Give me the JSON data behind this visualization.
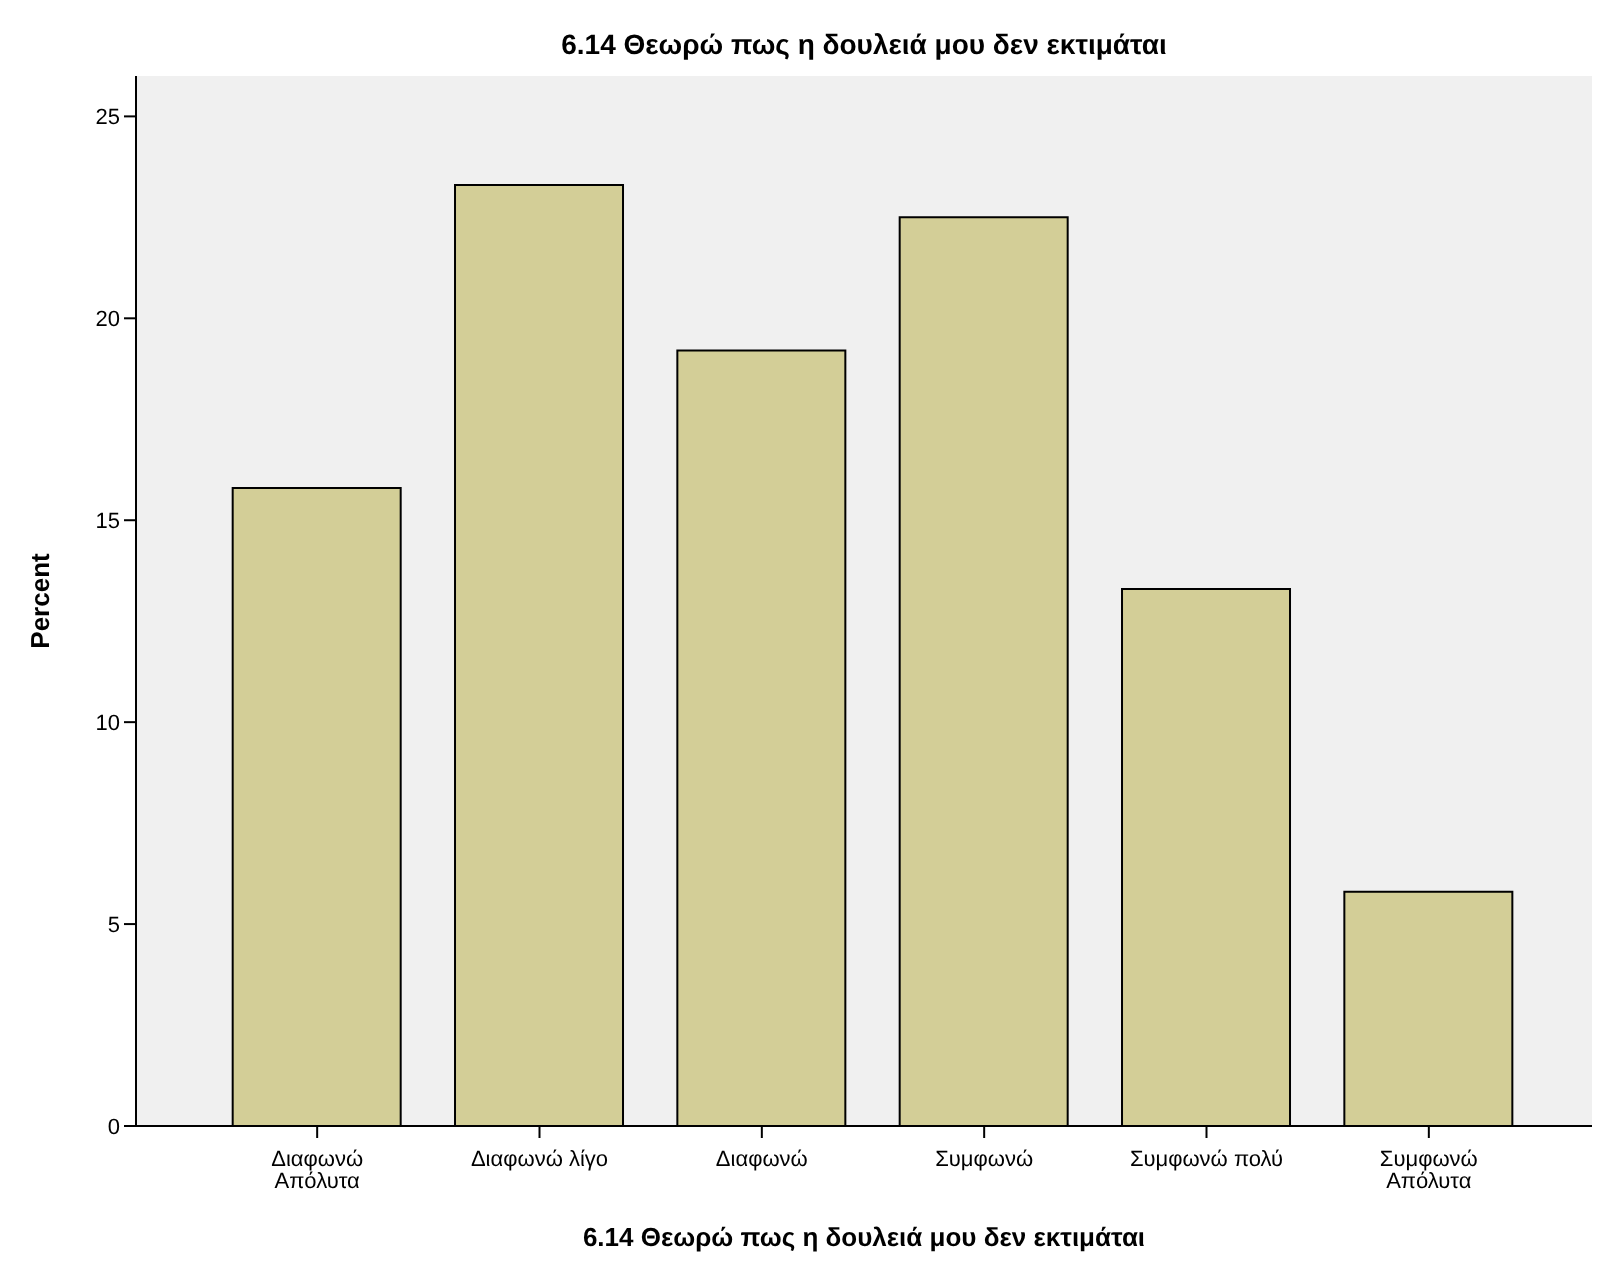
{
  "chart_data": {
    "type": "bar",
    "title": "6.14 Θεωρώ πως η δουλειά μου δεν εκτιμάται",
    "xlabel": "6.14 Θεωρώ πως η δουλειά μου δεν εκτιμάται",
    "ylabel": "Percent",
    "categories": [
      "Διαφωνώ Απόλυτα",
      "Διαφωνώ λίγο",
      "Διαφωνώ",
      "Συμφωνώ",
      "Συμφωνώ πολύ",
      "Συμφωνώ Απόλυτα"
    ],
    "values": [
      15.8,
      23.3,
      19.2,
      22.5,
      13.3,
      5.8
    ],
    "color": "#d3ce97",
    "ylim": [
      0,
      26
    ],
    "yticks": [
      0,
      5,
      10,
      15,
      20,
      25
    ],
    "grid": false,
    "legend": false
  }
}
